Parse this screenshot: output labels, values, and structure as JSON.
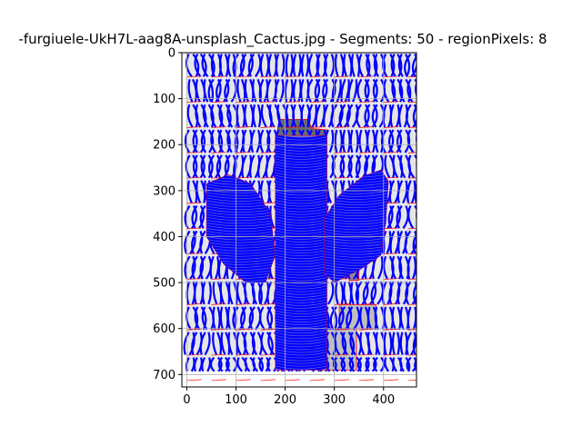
{
  "chart_data": {
    "type": "heatmap",
    "title": "-furgiuele-UkH7L-aag8A-unsplash_Cactus.jpg - Segments: 50 - regionPixels: 8",
    "xlabel": "",
    "ylabel": "",
    "xlim": [
      -10,
      467
    ],
    "ylim": [
      727,
      0
    ],
    "x_ticks": [
      0,
      100,
      200,
      300,
      400
    ],
    "y_ticks": [
      0,
      100,
      200,
      300,
      400,
      500,
      600,
      700
    ],
    "x_tick_labels": [
      "0",
      "100",
      "200",
      "300",
      "400"
    ],
    "y_tick_labels": [
      "0",
      "100",
      "200",
      "300",
      "400",
      "500",
      "600",
      "700"
    ],
    "grid": true,
    "image_extent": {
      "x": [
        0,
        467
      ],
      "y": [
        0,
        693
      ]
    },
    "colors": {
      "background_region": "#e6e6e6",
      "stripe": "#0000ff",
      "boundary": "#ff0000",
      "dark_region": "#6b6b6b",
      "gray_region": "#8e8e8e",
      "light_region": "#bfbfbf",
      "grid": "#b0b0b0"
    },
    "solid_regions": [
      {
        "name": "cactus-top",
        "shade": "dark_region",
        "polygon": [
          [
            188,
            145
          ],
          [
            246,
            145
          ],
          [
            255,
            165
          ],
          [
            285,
            168
          ],
          [
            285,
            225
          ],
          [
            190,
            228
          ],
          [
            180,
            195
          ]
        ]
      },
      {
        "name": "right-patch",
        "shade": "light_region",
        "polygon": [
          [
            310,
            548
          ],
          [
            385,
            548
          ],
          [
            385,
            600
          ],
          [
            310,
            600
          ]
        ]
      },
      {
        "name": "lower-patch",
        "shade": "light_region",
        "polygon": [
          [
            270,
            600
          ],
          [
            345,
            600
          ],
          [
            345,
            690
          ],
          [
            270,
            690
          ]
        ]
      },
      {
        "name": "mid-gray",
        "shade": "gray_region",
        "polygon": [
          [
            330,
            330
          ],
          [
            350,
            330
          ],
          [
            350,
            495
          ],
          [
            330,
            495
          ]
        ]
      }
    ],
    "cactus_regions": [
      {
        "name": "trunk",
        "polygon": [
          [
            180,
            180
          ],
          [
            285,
            180
          ],
          [
            285,
            690
          ],
          [
            180,
            690
          ]
        ]
      },
      {
        "name": "left-arm",
        "polygon": [
          [
            40,
            285
          ],
          [
            85,
            265
          ],
          [
            130,
            285
          ],
          [
            170,
            350
          ],
          [
            180,
            440
          ],
          [
            160,
            500
          ],
          [
            120,
            500
          ],
          [
            75,
            460
          ],
          [
            40,
            400
          ]
        ]
      },
      {
        "name": "right-arm",
        "polygon": [
          [
            280,
            360
          ],
          [
            310,
            310
          ],
          [
            360,
            268
          ],
          [
            395,
            255
          ],
          [
            410,
            280
          ],
          [
            405,
            360
          ],
          [
            395,
            440
          ],
          [
            355,
            470
          ],
          [
            300,
            500
          ],
          [
            280,
            480
          ]
        ]
      }
    ]
  }
}
